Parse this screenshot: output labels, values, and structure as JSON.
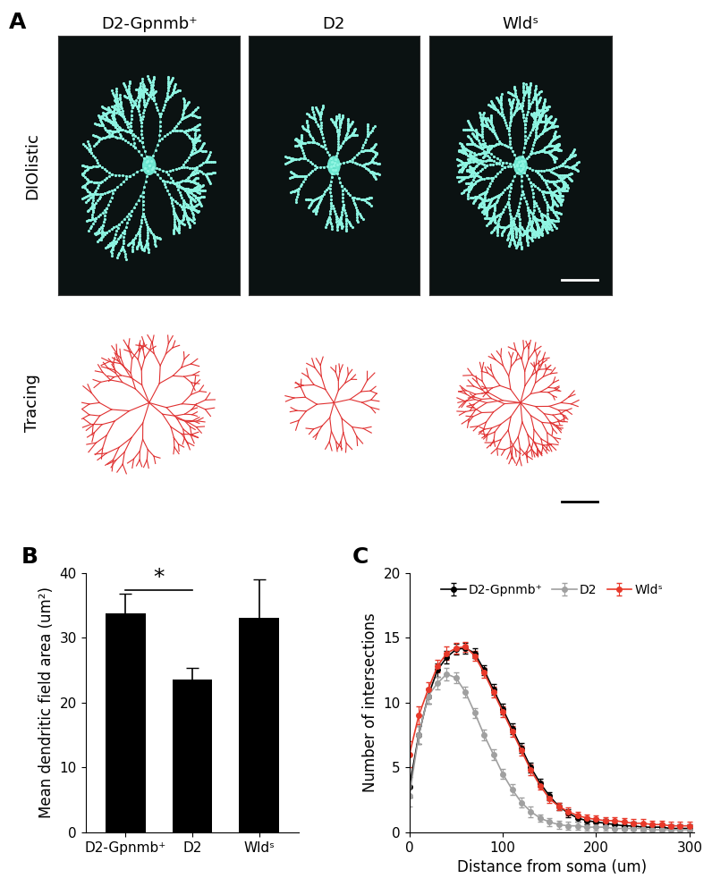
{
  "panel_a": {
    "label": "A",
    "columns": [
      "D2-Gpnmb⁺",
      "D2",
      "Wldˢ"
    ],
    "rows": [
      "DIOlistic",
      "Tracing"
    ]
  },
  "chart_data": [
    {
      "type": "bar",
      "title": "B",
      "categories": [
        "D2-Gpnmb⁺",
        "D2",
        "Wldˢ"
      ],
      "values": [
        33.8,
        23.5,
        33.0
      ],
      "errors": [
        3.0,
        1.8,
        6.0
      ],
      "color": "#000000",
      "y_label": "Mean dendritic field area (um²)",
      "ylim": [
        0,
        40
      ],
      "yticks": [
        0,
        10,
        20,
        30,
        40
      ],
      "annotations": [
        {
          "text": "*",
          "between": [
            "D2-Gpnmb⁺",
            "D2"
          ]
        }
      ]
    },
    {
      "type": "line",
      "title": "C",
      "x": [
        0,
        10,
        20,
        30,
        40,
        50,
        60,
        70,
        80,
        90,
        100,
        110,
        120,
        130,
        140,
        150,
        160,
        170,
        180,
        190,
        200,
        210,
        220,
        230,
        240,
        250,
        260,
        270,
        280,
        290,
        300
      ],
      "series": [
        {
          "name": "D2-Gpnmb⁺",
          "color": "#000000",
          "marker": "o",
          "values": [
            3.5,
            7.5,
            10.5,
            12.5,
            13.5,
            14.1,
            14.2,
            13.8,
            12.5,
            11.0,
            9.5,
            8.0,
            6.5,
            5.0,
            3.8,
            2.8,
            2.0,
            1.5,
            1.1,
            0.9,
            0.8,
            0.7,
            0.6,
            0.5,
            0.5,
            0.4,
            0.4,
            0.4,
            0.3,
            0.3,
            0.3
          ],
          "errors": [
            0.8,
            0.7,
            0.6,
            0.5,
            0.5,
            0.4,
            0.4,
            0.4,
            0.4,
            0.4,
            0.4,
            0.4,
            0.4,
            0.4,
            0.3,
            0.3,
            0.3,
            0.3,
            0.3,
            0.3,
            0.3,
            0.3,
            0.3,
            0.3,
            0.3,
            0.3,
            0.3,
            0.3,
            0.3,
            0.3,
            0.3
          ]
        },
        {
          "name": "D2",
          "color": "#a0a0a0",
          "marker": "o",
          "values": [
            2.8,
            7.5,
            10.5,
            11.5,
            12.2,
            11.9,
            10.8,
            9.2,
            7.5,
            6.0,
            4.5,
            3.3,
            2.3,
            1.6,
            1.1,
            0.8,
            0.6,
            0.5,
            0.5,
            0.4,
            0.4,
            0.4,
            0.3,
            0.3,
            0.3,
            0.3,
            0.2,
            0.2,
            0.2,
            0.2,
            0.2
          ],
          "errors": [
            0.8,
            0.7,
            0.6,
            0.5,
            0.5,
            0.4,
            0.4,
            0.4,
            0.4,
            0.4,
            0.4,
            0.4,
            0.4,
            0.4,
            0.3,
            0.3,
            0.3,
            0.3,
            0.3,
            0.3,
            0.3,
            0.3,
            0.3,
            0.3,
            0.3,
            0.3,
            0.3,
            0.3,
            0.3,
            0.3,
            0.3
          ]
        },
        {
          "name": "Wldˢ",
          "color": "#e8392a",
          "marker": "o",
          "values": [
            6.0,
            9.0,
            11.0,
            12.8,
            13.8,
            14.2,
            14.3,
            13.6,
            12.3,
            10.8,
            9.3,
            7.8,
            6.3,
            4.8,
            3.6,
            2.6,
            2.0,
            1.6,
            1.3,
            1.1,
            1.0,
            0.9,
            0.9,
            0.8,
            0.7,
            0.7,
            0.6,
            0.6,
            0.5,
            0.5,
            0.5
          ],
          "errors": [
            1.0,
            0.7,
            0.6,
            0.5,
            0.5,
            0.4,
            0.4,
            0.4,
            0.4,
            0.4,
            0.4,
            0.4,
            0.4,
            0.4,
            0.3,
            0.3,
            0.3,
            0.3,
            0.3,
            0.3,
            0.3,
            0.3,
            0.3,
            0.3,
            0.3,
            0.3,
            0.3,
            0.3,
            0.3,
            0.3,
            0.3
          ]
        }
      ],
      "x_label": "Distance from soma (um)",
      "y_label": "Number of intersections",
      "xlim": [
        0,
        305
      ],
      "xticks": [
        0,
        100,
        200,
        300
      ],
      "ylim": [
        0,
        20
      ],
      "yticks": [
        0,
        5,
        10,
        15,
        20
      ],
      "legend": "upper center"
    }
  ]
}
